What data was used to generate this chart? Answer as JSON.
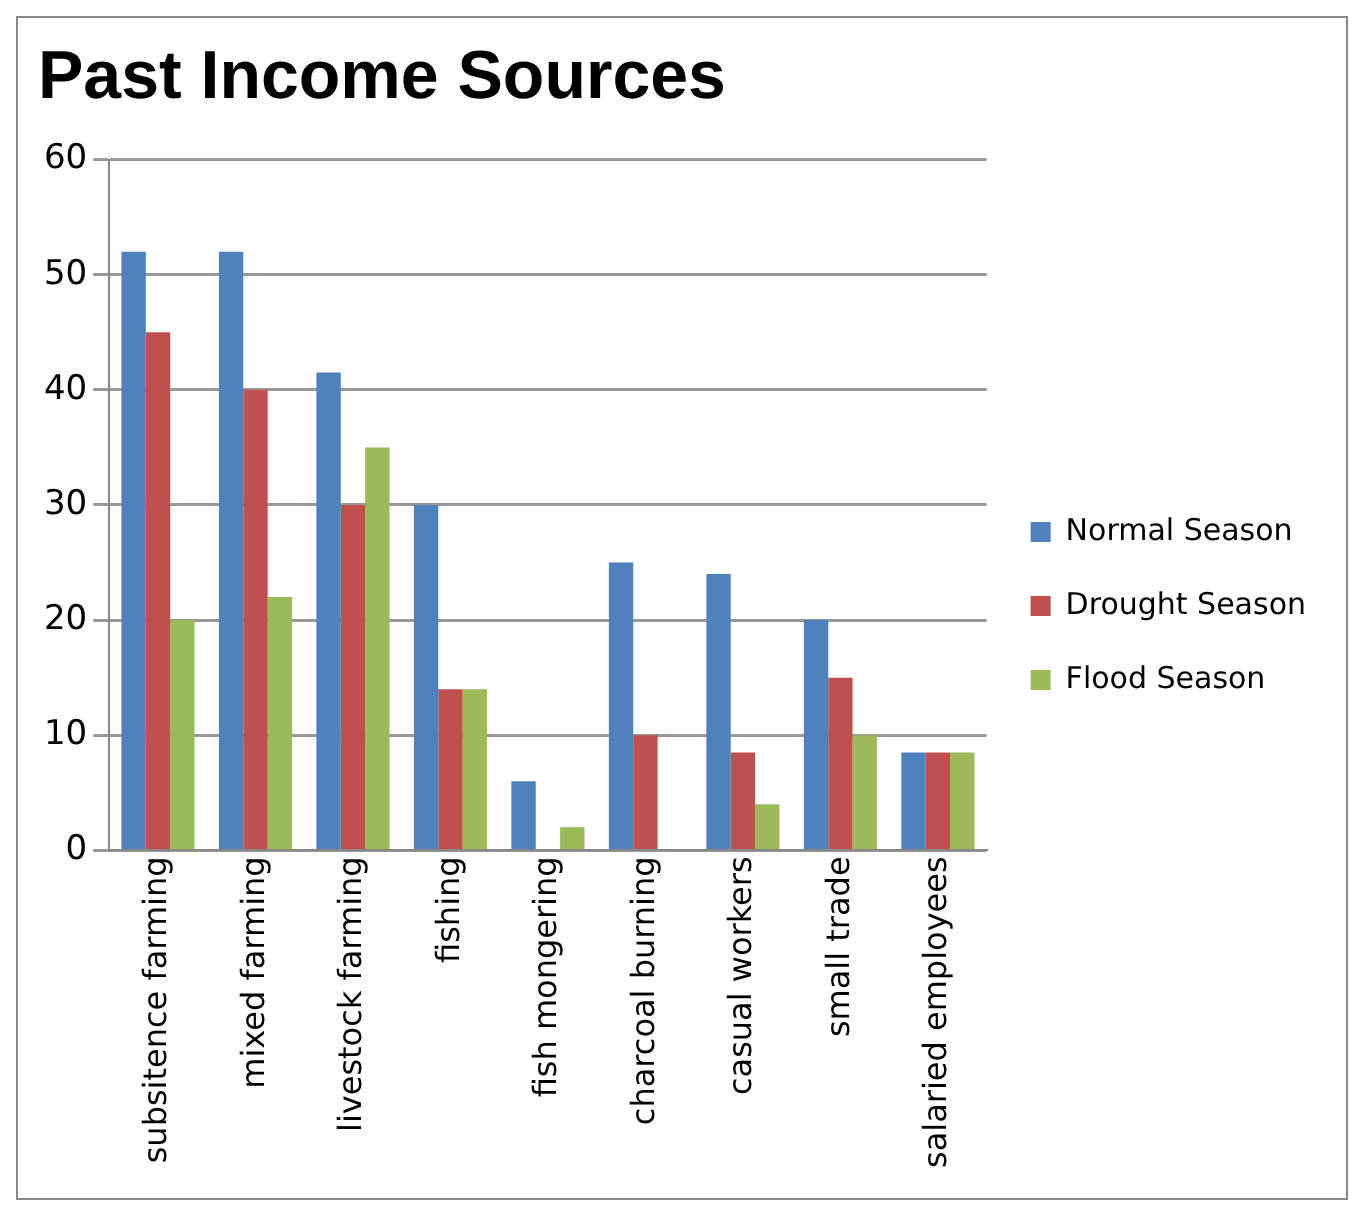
{
  "chart_data": {
    "type": "bar",
    "title": "Past Income Sources",
    "categories": [
      "subsitence farming",
      "mixed farming",
      "livestock farming",
      "fishing",
      "fish mongering",
      "charcoal burning",
      "casual workers",
      "small trade",
      "salaried employees"
    ],
    "series": [
      {
        "name": "Normal Season",
        "color": "#4f81bd",
        "values": [
          52,
          52,
          41.5,
          30,
          6,
          25,
          24,
          20,
          8.5
        ]
      },
      {
        "name": "Drought Season",
        "color": "#c0504d",
        "values": [
          45,
          40,
          30,
          14,
          0,
          10,
          8.5,
          15,
          8.5
        ]
      },
      {
        "name": "Flood Season",
        "color": "#9bbb59",
        "values": [
          20,
          22,
          35,
          14,
          2,
          0,
          4,
          10,
          8.5
        ]
      }
    ],
    "ylim": [
      0,
      60
    ],
    "yticks": [
      0,
      10,
      20,
      30,
      40,
      50,
      60
    ],
    "grid": "y",
    "legend": "right"
  }
}
